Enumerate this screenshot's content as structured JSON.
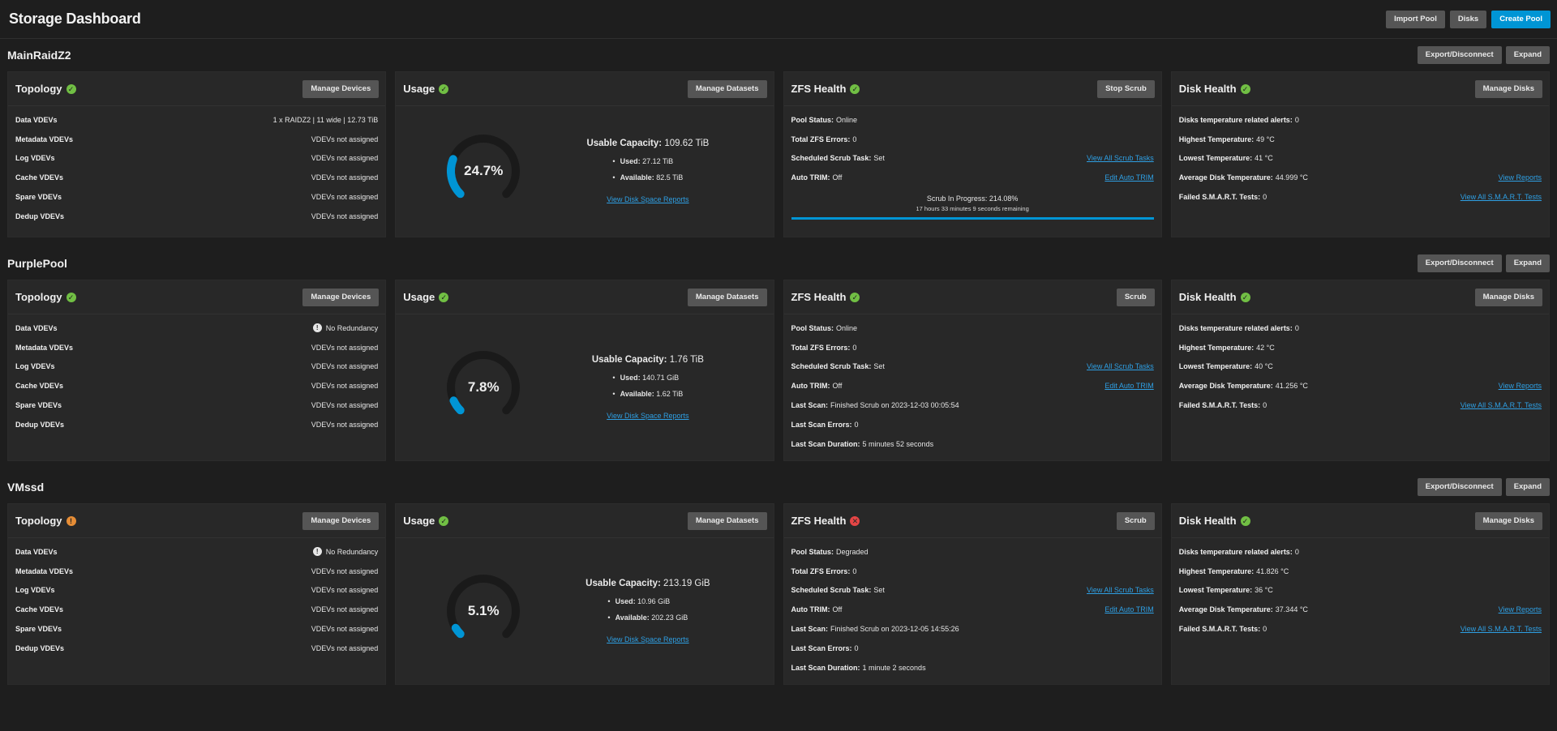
{
  "header": {
    "title": "Storage Dashboard",
    "actions": {
      "import_pool": "Import Pool",
      "disks": "Disks",
      "create_pool": "Create Pool"
    }
  },
  "labels": {
    "topology": "Topology",
    "usage": "Usage",
    "zfs_health": "ZFS Health",
    "disk_health": "Disk Health",
    "manage_devices": "Manage Devices",
    "manage_datasets": "Manage Datasets",
    "manage_disks": "Manage Disks",
    "export_disconnect": "Export/Disconnect",
    "expand": "Expand",
    "data_vdevs": "Data VDEVs",
    "metadata_vdevs": "Metadata VDEVs",
    "log_vdevs": "Log VDEVs",
    "cache_vdevs": "Cache VDEVs",
    "spare_vdevs": "Spare VDEVs",
    "dedup_vdevs": "Dedup VDEVs",
    "usable_capacity": "Usable Capacity:",
    "used": "Used:",
    "available": "Available:",
    "view_disk_space_reports": "View Disk Space Reports",
    "pool_status": "Pool Status:",
    "total_zfs_errors": "Total ZFS Errors:",
    "scheduled_scrub_task": "Scheduled Scrub Task:",
    "auto_trim": "Auto TRIM:",
    "last_scan": "Last Scan:",
    "last_scan_errors": "Last Scan Errors:",
    "last_scan_duration": "Last Scan Duration:",
    "view_all_scrub_tasks": "View All Scrub Tasks",
    "edit_auto_trim": "Edit Auto TRIM",
    "temp_alerts": "Disks temperature related alerts:",
    "highest_temp": "Highest Temperature:",
    "lowest_temp": "Lowest Temperature:",
    "avg_temp": "Average Disk Temperature:",
    "failed_smart": "Failed S.M.A.R.T. Tests:",
    "view_reports": "View Reports",
    "view_all_smart_tests": "View All S.M.A.R.T. Tests"
  },
  "pools": [
    {
      "name": "MainRaidZ2",
      "topology": {
        "status": "ok",
        "data": "1 x RAIDZ2 | 11 wide | 12.73 TiB",
        "metadata": "VDEVs not assigned",
        "log": "VDEVs not assigned",
        "cache": "VDEVs not assigned",
        "spare": "VDEVs not assigned",
        "dedup": "VDEVs not assigned"
      },
      "usage": {
        "status": "ok",
        "percent_label": "24.7%",
        "percent": 24.7,
        "capacity": "109.62 TiB",
        "used": "27.12 TiB",
        "available": "82.5 TiB"
      },
      "zfs": {
        "status": "ok",
        "scrub_button": "Stop Scrub",
        "pool_status": "Online",
        "errors": "0",
        "scrub_task": "Set",
        "auto_trim": "Off",
        "scrub_progress_title": "Scrub In Progress: 214.08%",
        "scrub_progress_sub": "17 hours 33 minutes 9 seconds remaining",
        "scrub_progress": 1.0
      },
      "disk": {
        "status": "ok",
        "alerts": "0",
        "highest": "49 °C",
        "lowest": "41 °C",
        "avg": "44.999 °C",
        "failed": "0"
      }
    },
    {
      "name": "PurplePool",
      "topology": {
        "status": "ok",
        "data": "No Redundancy",
        "metadata": "VDEVs not assigned",
        "log": "VDEVs not assigned",
        "cache": "VDEVs not assigned",
        "spare": "VDEVs not assigned",
        "dedup": "VDEVs not assigned"
      },
      "usage": {
        "status": "ok",
        "percent_label": "7.8%",
        "percent": 7.8,
        "capacity": "1.76 TiB",
        "used": "140.71 GiB",
        "available": "1.62 TiB"
      },
      "zfs": {
        "status": "ok",
        "scrub_button": "Scrub",
        "pool_status": "Online",
        "errors": "0",
        "scrub_task": "Set",
        "auto_trim": "Off",
        "last_scan": "Finished Scrub on 2023-12-03 00:05:54",
        "last_scan_errors": "0",
        "last_scan_duration": "5 minutes 52 seconds"
      },
      "disk": {
        "status": "ok",
        "alerts": "0",
        "highest": "42 °C",
        "lowest": "40 °C",
        "avg": "41.256 °C",
        "failed": "0"
      }
    },
    {
      "name": "VMssd",
      "topology": {
        "status": "warn",
        "data": "No Redundancy",
        "metadata": "VDEVs not assigned",
        "log": "VDEVs not assigned",
        "cache": "VDEVs not assigned",
        "spare": "VDEVs not assigned",
        "dedup": "VDEVs not assigned"
      },
      "usage": {
        "status": "ok",
        "percent_label": "5.1%",
        "percent": 5.1,
        "capacity": "213.19 GiB",
        "used": "10.96 GiB",
        "available": "202.23 GiB"
      },
      "zfs": {
        "status": "err",
        "scrub_button": "Scrub",
        "pool_status": "Degraded",
        "errors": "0",
        "scrub_task": "Set",
        "auto_trim": "Off",
        "last_scan": "Finished Scrub on 2023-12-05 14:55:26",
        "last_scan_errors": "0",
        "last_scan_duration": "1 minute 2 seconds"
      },
      "disk": {
        "status": "ok",
        "alerts": "0",
        "highest": "41.826 °C",
        "lowest": "36 °C",
        "avg": "37.344 °C",
        "failed": "0"
      }
    }
  ],
  "colors": {
    "accent": "#0095d5",
    "ok": "#71bf44",
    "warn": "#e68d36",
    "error": "#e54545",
    "link": "#2e9fe3"
  }
}
